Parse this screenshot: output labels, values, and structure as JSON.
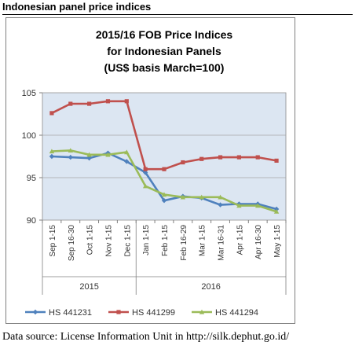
{
  "page": {
    "heading": "Indonesian panel price indices",
    "source": "Data source: License Information Unit in http://silk.dephut.go.id/"
  },
  "colors": {
    "plot_background": "#dce6f2",
    "gridline": "#a6a6a6",
    "HS 441231": "#4f81bd",
    "HS 441299": "#c0504d",
    "HS 441294": "#9bbb59"
  },
  "chart_data": {
    "type": "line",
    "title_lines": [
      "2015/16 FOB Price Indices",
      "for Indonesian Panels",
      "(US$ basis March=100)"
    ],
    "categories": [
      "Sep 1-15",
      "Sep 16-30",
      "Oct 1-15",
      "Nov 1-15",
      "Dec 1-15",
      "Jan 1-15",
      "Feb 1-15",
      "Feb 16-29",
      "Mar 1-15",
      "Mar 16-31",
      "Apr 1-15",
      "Apr 16-30",
      "May 1-15"
    ],
    "x_groups": [
      {
        "label": "2015",
        "start": 0,
        "end": 4
      },
      {
        "label": "2016",
        "start": 5,
        "end": 12
      }
    ],
    "ylim": [
      90,
      105
    ],
    "yticks": [
      90,
      95,
      100,
      105
    ],
    "grid": true,
    "legend_position": "bottom",
    "series": [
      {
        "name": "HS 441231",
        "values": [
          97.5,
          97.4,
          97.3,
          97.9,
          96.9,
          95.6,
          92.3,
          92.8,
          92.6,
          91.8,
          91.9,
          91.9,
          91.3
        ]
      },
      {
        "name": "HS 441299",
        "values": [
          102.6,
          103.7,
          103.7,
          104.0,
          104.0,
          96.0,
          96.0,
          96.8,
          97.2,
          97.4,
          97.4,
          97.4,
          97.0
        ]
      },
      {
        "name": "HS 441294",
        "values": [
          98.1,
          98.2,
          97.7,
          97.7,
          98.0,
          94.0,
          93.0,
          92.7,
          92.7,
          92.7,
          91.7,
          91.7,
          91.0
        ]
      }
    ]
  }
}
